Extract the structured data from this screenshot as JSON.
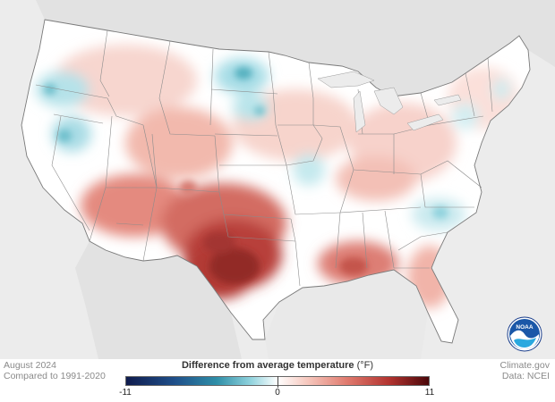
{
  "map": {
    "period": "August 2024",
    "baseline": "Compared to 1991-2020",
    "legend": {
      "title": "Difference from average temperature",
      "units": "(°F)",
      "min_label": "-11",
      "mid_label": "0",
      "max_label": "11",
      "min_value": -11,
      "max_value": 11,
      "colors": [
        "#0f1b4d",
        "#2f8fa8",
        "#ffffff",
        "#e07a6e",
        "#4a0609"
      ]
    },
    "credit": {
      "source": "Climate.gov",
      "data": "Data: NCEI"
    },
    "logo_text": "NOAA"
  }
}
